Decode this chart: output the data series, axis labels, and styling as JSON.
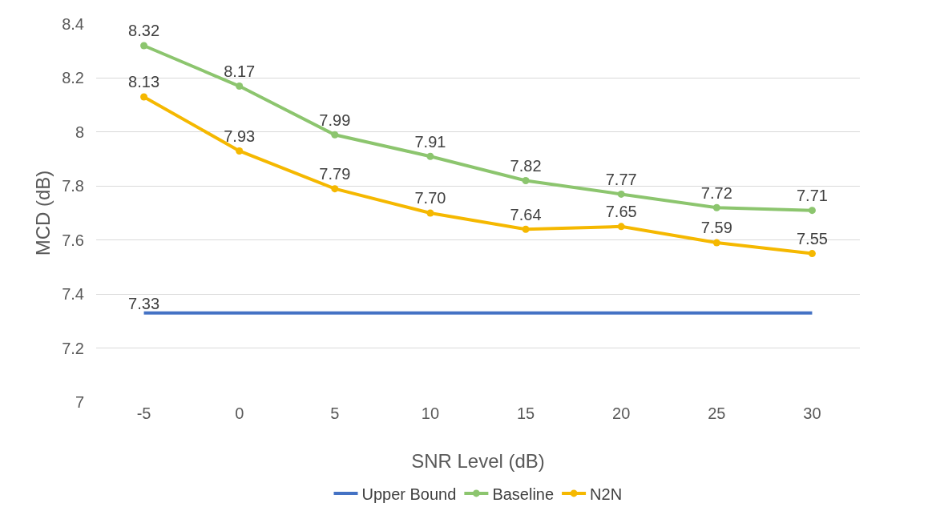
{
  "chart_data": {
    "type": "line",
    "xlabel": "SNR Level (dB)",
    "ylabel": "MCD (dB)",
    "categories": [
      "-5",
      "0",
      "5",
      "10",
      "15",
      "20",
      "25",
      "30"
    ],
    "series": [
      {
        "name": "Upper Bound",
        "color": "#4472c4",
        "marker": "none",
        "values": [
          7.33,
          7.33,
          7.33,
          7.33,
          7.33,
          7.33,
          7.33,
          7.33
        ],
        "value_labels": [
          "7.33",
          null,
          null,
          null,
          null,
          null,
          null,
          null
        ]
      },
      {
        "name": "Baseline",
        "color": "#8cc56e",
        "marker": "circle",
        "values": [
          8.32,
          8.17,
          7.99,
          7.91,
          7.82,
          7.77,
          7.72,
          7.71
        ],
        "value_labels": [
          "8.32",
          "8.17",
          "7.99",
          "7.91",
          "7.82",
          "7.77",
          "7.72",
          "7.71"
        ]
      },
      {
        "name": "N2N",
        "color": "#f5b800",
        "marker": "circle",
        "values": [
          8.13,
          7.93,
          7.79,
          7.7,
          7.64,
          7.65,
          7.59,
          7.55
        ],
        "value_labels": [
          "8.13",
          "7.93",
          "7.79",
          "7.70",
          "7.64",
          "7.65",
          "7.59",
          "7.55"
        ]
      }
    ],
    "ylim": [
      7,
      8.4
    ],
    "yticks": [
      7,
      7.2,
      7.4,
      7.6,
      7.8,
      8,
      8.2,
      8.4
    ],
    "grid": "y",
    "legend": "bottom",
    "line_style": "solid"
  }
}
